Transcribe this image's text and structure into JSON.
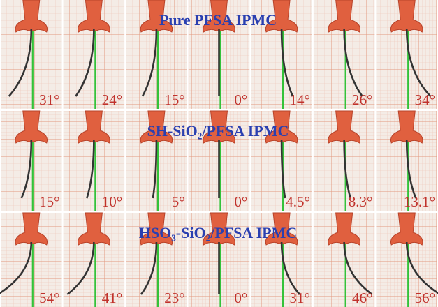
{
  "rows": [
    {
      "title": "Pure PFSA IPMC",
      "labels": [
        "31°",
        "24°",
        "15°",
        "0°",
        "14°",
        "26°",
        "34°"
      ]
    },
    {
      "title": "SH-SiO₂/PFSA IPMC",
      "labels": [
        "15°",
        "10°",
        "5°",
        "0°",
        "4.5°",
        "8.3°",
        "13.1°"
      ]
    },
    {
      "title": "HSO₃-SiO₂/PFSA IPMC",
      "labels": [
        "54°",
        "41°",
        "23°",
        "0°",
        "31°",
        "46°",
        "56°"
      ]
    }
  ]
}
